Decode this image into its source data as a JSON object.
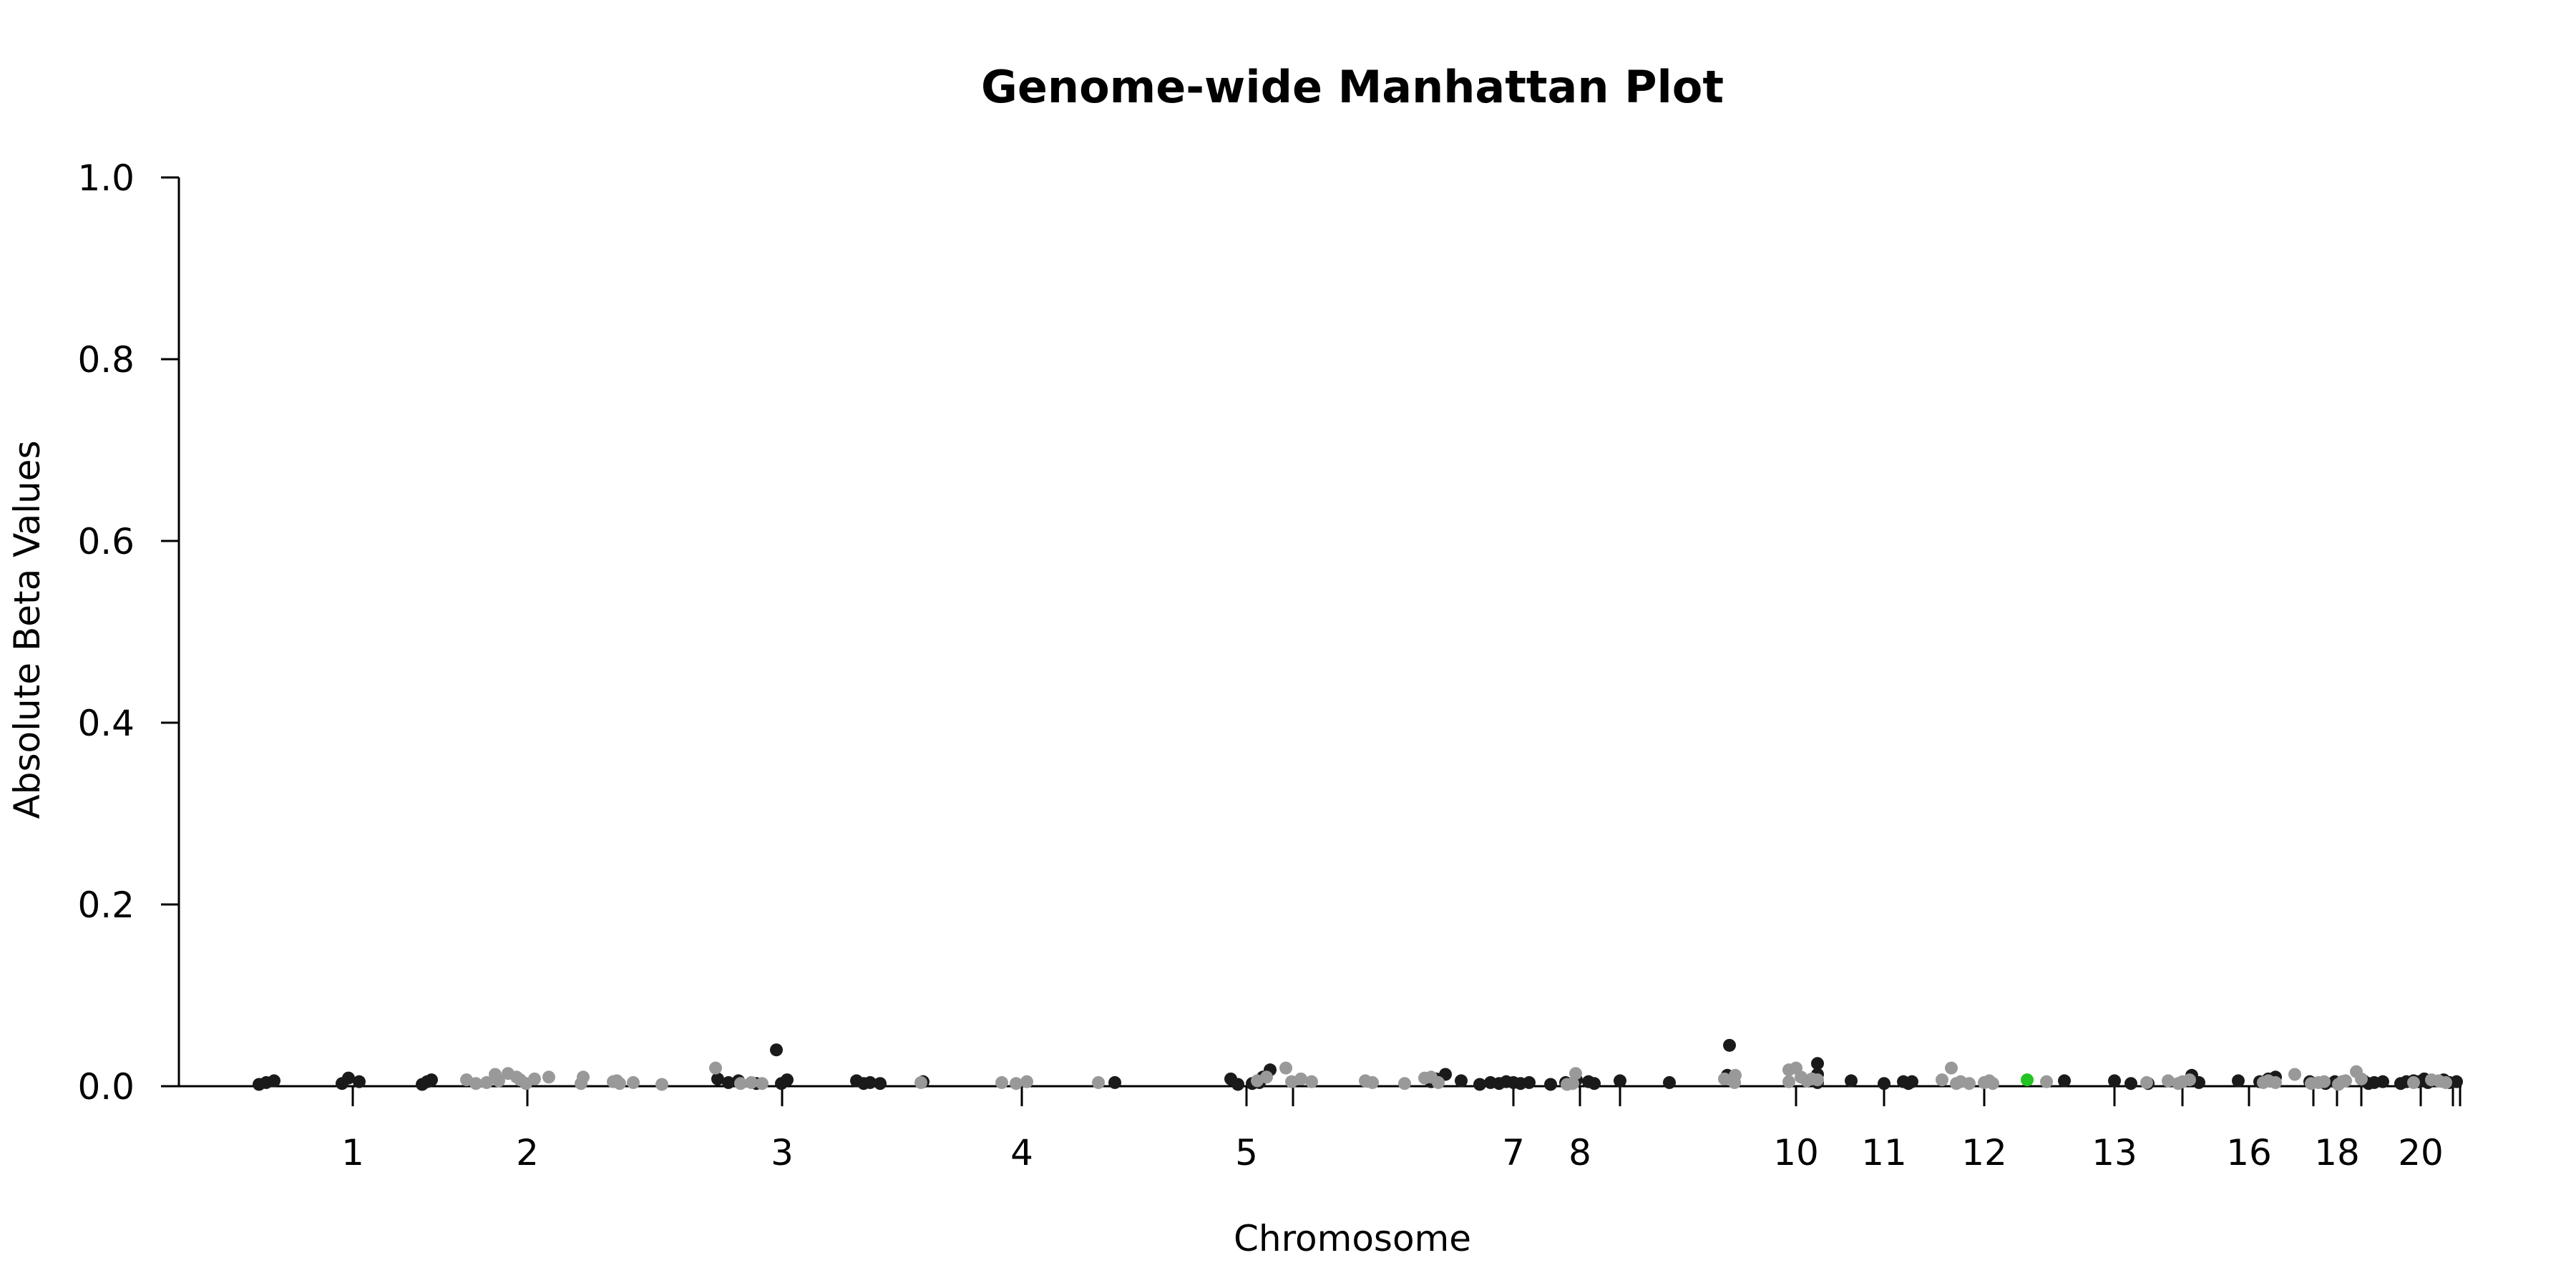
{
  "chart_data": {
    "type": "scatter",
    "title": "Genome-wide Manhattan Plot",
    "xlabel": "Chromosome",
    "ylabel": "Absolute Beta Values",
    "ylim": [
      0,
      1
    ],
    "yticks": [
      "0.0",
      "0.2",
      "0.4",
      "0.6",
      "0.8",
      "1.0"
    ],
    "xticks": [
      {
        "label": "1"
      },
      {
        "label": ""
      },
      {
        "label": "2"
      },
      {
        "label": "3"
      },
      {
        "label": "4"
      },
      {
        "label": "5"
      },
      {
        "label": ""
      },
      {
        "label": "7"
      },
      {
        "label": "8"
      },
      {
        "label": ""
      },
      {
        "label": "10"
      },
      {
        "label": "11"
      },
      {
        "label": "12"
      },
      {
        "label": "13"
      },
      {
        "label": ""
      },
      {
        "label": "16"
      },
      {
        "label": ""
      },
      {
        "label": "18"
      },
      {
        "label": ""
      },
      {
        "label": "20"
      },
      {
        "label": ""
      },
      {
        "label": ""
      }
    ],
    "colors": {
      "dark": "#1a1a1a",
      "light": "#999999",
      "highlight": "#22c322"
    },
    "grid": false,
    "legend": "none",
    "series": [
      {
        "color": "dark",
        "values": [
          0.002,
          0.004,
          0.006,
          0.003,
          0.009,
          0.005,
          0.002,
          0.005,
          0.007,
          0.008,
          0.004,
          0.006,
          0.003,
          0.04,
          0.003,
          0.007,
          0.006,
          0.003,
          0.004,
          0.003,
          0.005,
          0.004,
          0.008,
          0.002,
          0.003,
          0.004,
          0.01,
          0.018,
          0.005,
          0.008,
          0.013,
          0.006,
          0.002,
          0.004,
          0.003,
          0.005,
          0.004,
          0.003,
          0.004,
          0.002,
          0.004,
          0.007,
          0.005,
          0.003,
          0.006,
          0.004,
          0.012,
          0.045,
          0.004,
          0.025,
          0.013,
          0.006,
          0.003,
          0.005,
          0.003,
          0.005,
          0.006,
          0.006,
          0.003,
          0.003,
          0.012,
          0.004,
          0.006,
          0.005,
          0.008,
          0.01,
          0.005,
          0.003,
          0.005,
          0.006,
          0.003,
          0.004,
          0.005,
          0.003,
          0.005,
          0.006,
          0.005,
          0.008,
          0.004,
          0.007,
          0.004,
          0.005
        ]
      },
      {
        "color": "light",
        "values": [
          0.007,
          0.003,
          0.013,
          0.004,
          0.006,
          0.014,
          0.01,
          0.007,
          0.003,
          0.008,
          0.01,
          0.003,
          0.01,
          0.005,
          0.006,
          0.003,
          0.004,
          0.002,
          0.02,
          0.003,
          0.004,
          0.003,
          0.004,
          0.004,
          0.003,
          0.005,
          0.004,
          0.006,
          0.01,
          0.02,
          0.005,
          0.008,
          0.005,
          0.006,
          0.004,
          0.003,
          0.009,
          0.01,
          0.004,
          0.002,
          0.003,
          0.014,
          0.008,
          0.004,
          0.012,
          0.005,
          0.018,
          0.02,
          0.01,
          0.006,
          0.008,
          0.007,
          0.007,
          0.02,
          0.003,
          0.005,
          0.003,
          0.004,
          0.006,
          0.003,
          0.005,
          0.004,
          0.006,
          0.003,
          0.005,
          0.007,
          0.004,
          0.006,
          0.004,
          0.013,
          0.003,
          0.004,
          0.005,
          0.002,
          0.005,
          0.006,
          0.016,
          0.008,
          0.004,
          0.007,
          0.006,
          0.004
        ]
      },
      {
        "color": "highlight",
        "values": [
          0.007
        ]
      }
    ]
  }
}
